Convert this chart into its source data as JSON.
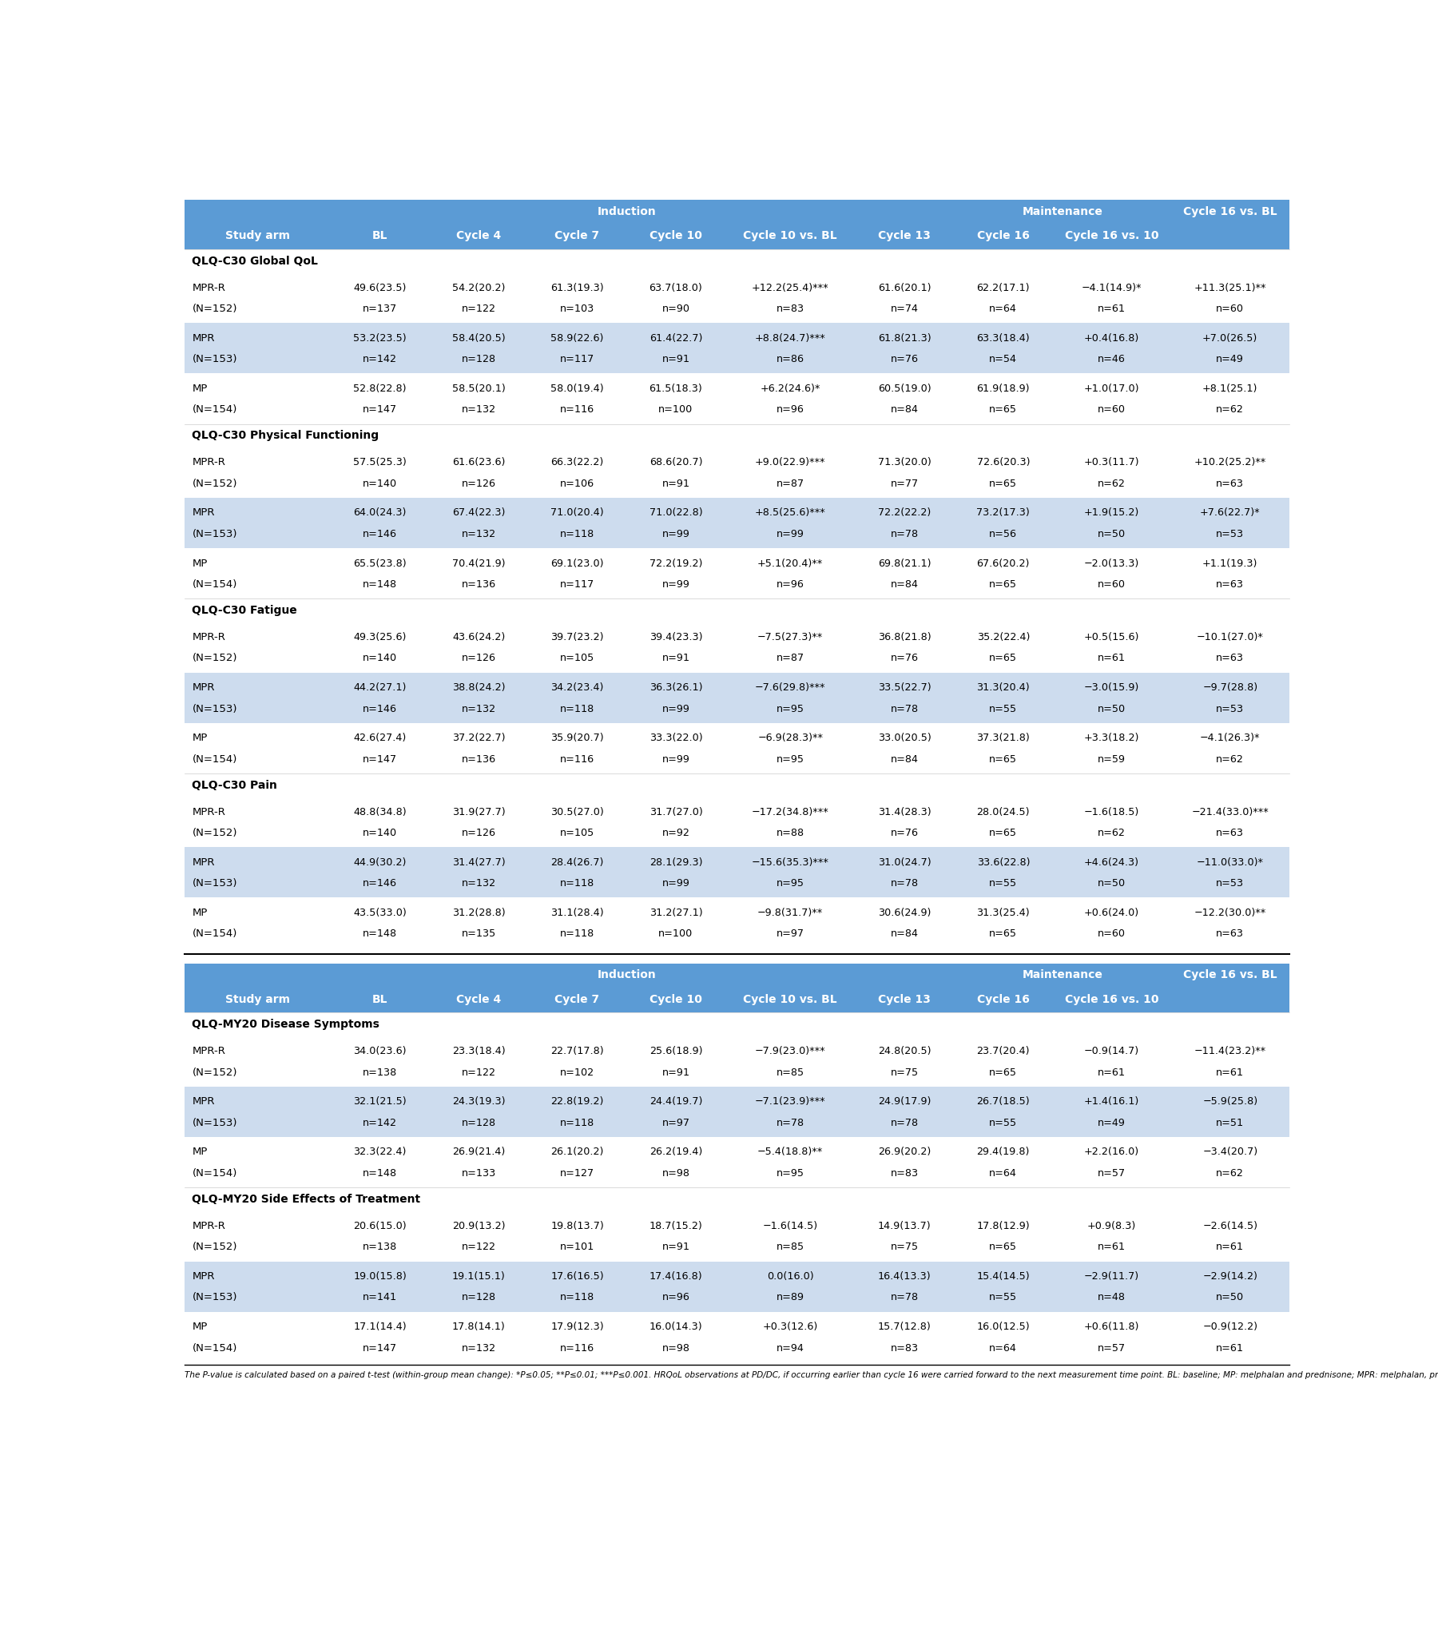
{
  "header_bg": "#5b9bd5",
  "header_text": "#ffffff",
  "row_alt_bg": "#cddcee",
  "row_white_bg": "#ffffff",
  "body_text_color": "#000000",
  "sections_top": [
    {
      "title": "QLQ-C30 Global QoL",
      "rows": [
        {
          "arm": "MPR-R\n(N=152)",
          "shaded": false,
          "BL": "49.6(23.5)\nn=137",
          "C4": "54.2(20.2)\nn=122",
          "C7": "61.3(19.3)\nn=103",
          "C10": "63.7(18.0)\nn=90",
          "C10vsBL": "+12.2(25.4)***\nn=83",
          "C13": "61.6(20.1)\nn=74",
          "C16": "62.2(17.1)\nn=64",
          "C16vs10": "−4.1(14.9)*\nn=61",
          "C16vsBL": "+11.3(25.1)**\nn=60"
        },
        {
          "arm": "MPR\n(N=153)",
          "shaded": true,
          "BL": "53.2(23.5)\nn=142",
          "C4": "58.4(20.5)\nn=128",
          "C7": "58.9(22.6)\nn=117",
          "C10": "61.4(22.7)\nn=91",
          "C10vsBL": "+8.8(24.7)***\nn=86",
          "C13": "61.8(21.3)\nn=76",
          "C16": "63.3(18.4)\nn=54",
          "C16vs10": "+0.4(16.8)\nn=46",
          "C16vsBL": "+7.0(26.5)\nn=49"
        },
        {
          "arm": "MP\n(N=154)",
          "shaded": false,
          "BL": "52.8(22.8)\nn=147",
          "C4": "58.5(20.1)\nn=132",
          "C7": "58.0(19.4)\nn=116",
          "C10": "61.5(18.3)\nn=100",
          "C10vsBL": "+6.2(24.6)*\nn=96",
          "C13": "60.5(19.0)\nn=84",
          "C16": "61.9(18.9)\nn=65",
          "C16vs10": "+1.0(17.0)\nn=60",
          "C16vsBL": "+8.1(25.1)\nn=62"
        }
      ]
    },
    {
      "title": "QLQ-C30 Physical Functioning",
      "rows": [
        {
          "arm": "MPR-R\n(N=152)",
          "shaded": false,
          "BL": "57.5(25.3)\nn=140",
          "C4": "61.6(23.6)\nn=126",
          "C7": "66.3(22.2)\nn=106",
          "C10": "68.6(20.7)\nn=91",
          "C10vsBL": "+9.0(22.9)***\nn=87",
          "C13": "71.3(20.0)\nn=77",
          "C16": "72.6(20.3)\nn=65",
          "C16vs10": "+0.3(11.7)\nn=62",
          "C16vsBL": "+10.2(25.2)**\nn=63"
        },
        {
          "arm": "MPR\n(N=153)",
          "shaded": true,
          "BL": "64.0(24.3)\nn=146",
          "C4": "67.4(22.3)\nn=132",
          "C7": "71.0(20.4)\nn=118",
          "C10": "71.0(22.8)\nn=99",
          "C10vsBL": "+8.5(25.6)***\nn=99",
          "C13": "72.2(22.2)\nn=78",
          "C16": "73.2(17.3)\nn=56",
          "C16vs10": "+1.9(15.2)\nn=50",
          "C16vsBL": "+7.6(22.7)*\nn=53"
        },
        {
          "arm": "MP\n(N=154)",
          "shaded": false,
          "BL": "65.5(23.8)\nn=148",
          "C4": "70.4(21.9)\nn=136",
          "C7": "69.1(23.0)\nn=117",
          "C10": "72.2(19.2)\nn=99",
          "C10vsBL": "+5.1(20.4)**\nn=96",
          "C13": "69.8(21.1)\nn=84",
          "C16": "67.6(20.2)\nn=65",
          "C16vs10": "−2.0(13.3)\nn=60",
          "C16vsBL": "+1.1(19.3)\nn=63"
        }
      ]
    },
    {
      "title": "QLQ-C30 Fatigue",
      "rows": [
        {
          "arm": "MPR-R\n(N=152)",
          "shaded": false,
          "BL": "49.3(25.6)\nn=140",
          "C4": "43.6(24.2)\nn=126",
          "C7": "39.7(23.2)\nn=105",
          "C10": "39.4(23.3)\nn=91",
          "C10vsBL": "−7.5(27.3)**\nn=87",
          "C13": "36.8(21.8)\nn=76",
          "C16": "35.2(22.4)\nn=65",
          "C16vs10": "+0.5(15.6)\nn=61",
          "C16vsBL": "−10.1(27.0)*\nn=63"
        },
        {
          "arm": "MPR\n(N=153)",
          "shaded": true,
          "BL": "44.2(27.1)\nn=146",
          "C4": "38.8(24.2)\nn=132",
          "C7": "34.2(23.4)\nn=118",
          "C10": "36.3(26.1)\nn=99",
          "C10vsBL": "−7.6(29.8)***\nn=95",
          "C13": "33.5(22.7)\nn=78",
          "C16": "31.3(20.4)\nn=55",
          "C16vs10": "−3.0(15.9)\nn=50",
          "C16vsBL": "−9.7(28.8)\nn=53"
        },
        {
          "arm": "MP\n(N=154)",
          "shaded": false,
          "BL": "42.6(27.4)\nn=147",
          "C4": "37.2(22.7)\nn=136",
          "C7": "35.9(20.7)\nn=116",
          "C10": "33.3(22.0)\nn=99",
          "C10vsBL": "−6.9(28.3)**\nn=95",
          "C13": "33.0(20.5)\nn=84",
          "C16": "37.3(21.8)\nn=65",
          "C16vs10": "+3.3(18.2)\nn=59",
          "C16vsBL": "−4.1(26.3)*\nn=62"
        }
      ]
    },
    {
      "title": "QLQ-C30 Pain",
      "rows": [
        {
          "arm": "MPR-R\n(N=152)",
          "shaded": false,
          "BL": "48.8(34.8)\nn=140",
          "C4": "31.9(27.7)\nn=126",
          "C7": "30.5(27.0)\nn=105",
          "C10": "31.7(27.0)\nn=92",
          "C10vsBL": "−17.2(34.8)***\nn=88",
          "C13": "31.4(28.3)\nn=76",
          "C16": "28.0(24.5)\nn=65",
          "C16vs10": "−1.6(18.5)\nn=62",
          "C16vsBL": "−21.4(33.0)***\nn=63"
        },
        {
          "arm": "MPR\n(N=153)",
          "shaded": true,
          "BL": "44.9(30.2)\nn=146",
          "C4": "31.4(27.7)\nn=132",
          "C7": "28.4(26.7)\nn=118",
          "C10": "28.1(29.3)\nn=99",
          "C10vsBL": "−15.6(35.3)***\nn=95",
          "C13": "31.0(24.7)\nn=78",
          "C16": "33.6(22.8)\nn=55",
          "C16vs10": "+4.6(24.3)\nn=50",
          "C16vsBL": "−11.0(33.0)*\nn=53"
        },
        {
          "arm": "MP\n(N=154)",
          "shaded": false,
          "BL": "43.5(33.0)\nn=148",
          "C4": "31.2(28.8)\nn=135",
          "C7": "31.1(28.4)\nn=118",
          "C10": "31.2(27.1)\nn=100",
          "C10vsBL": "−9.8(31.7)**\nn=97",
          "C13": "30.6(24.9)\nn=84",
          "C16": "31.3(25.4)\nn=65",
          "C16vs10": "+0.6(24.0)\nn=60",
          "C16vsBL": "−12.2(30.0)**\nn=63"
        }
      ]
    }
  ],
  "sections_bottom": [
    {
      "title": "QLQ-MY20 Disease Symptoms",
      "rows": [
        {
          "arm": "MPR-R\n(N=152)",
          "shaded": false,
          "BL": "34.0(23.6)\nn=138",
          "C4": "23.3(18.4)\nn=122",
          "C7": "22.7(17.8)\nn=102",
          "C10": "25.6(18.9)\nn=91",
          "C10vsBL": "−7.9(23.0)***\nn=85",
          "C13": "24.8(20.5)\nn=75",
          "C16": "23.7(20.4)\nn=65",
          "C16vs10": "−0.9(14.7)\nn=61",
          "C16vsBL": "−11.4(23.2)**\nn=61"
        },
        {
          "arm": "MPR\n(N=153)",
          "shaded": true,
          "BL": "32.1(21.5)\nn=142",
          "C4": "24.3(19.3)\nn=128",
          "C7": "22.8(19.2)\nn=118",
          "C10": "24.4(19.7)\nn=97",
          "C10vsBL": "−7.1(23.9)***\nn=78",
          "C13": "24.9(17.9)\nn=78",
          "C16": "26.7(18.5)\nn=55",
          "C16vs10": "+1.4(16.1)\nn=49",
          "C16vsBL": "−5.9(25.8)\nn=51"
        },
        {
          "arm": "MP\n(N=154)",
          "shaded": false,
          "BL": "32.3(22.4)\nn=148",
          "C4": "26.9(21.4)\nn=133",
          "C7": "26.1(20.2)\nn=127",
          "C10": "26.2(19.4)\nn=98",
          "C10vsBL": "−5.4(18.8)**\nn=95",
          "C13": "26.9(20.2)\nn=83",
          "C16": "29.4(19.8)\nn=64",
          "C16vs10": "+2.2(16.0)\nn=57",
          "C16vsBL": "−3.4(20.7)\nn=62"
        }
      ]
    },
    {
      "title": "QLQ-MY20 Side Effects of Treatment",
      "rows": [
        {
          "arm": "MPR-R\n(N=152)",
          "shaded": false,
          "BL": "20.6(15.0)\nn=138",
          "C4": "20.9(13.2)\nn=122",
          "C7": "19.8(13.7)\nn=101",
          "C10": "18.7(15.2)\nn=91",
          "C10vsBL": "−1.6(14.5)\nn=85",
          "C13": "14.9(13.7)\nn=75",
          "C16": "17.8(12.9)\nn=65",
          "C16vs10": "+0.9(8.3)\nn=61",
          "C16vsBL": "−2.6(14.5)\nn=61"
        },
        {
          "arm": "MPR\n(N=153)",
          "shaded": true,
          "BL": "19.0(15.8)\nn=141",
          "C4": "19.1(15.1)\nn=128",
          "C7": "17.6(16.5)\nn=118",
          "C10": "17.4(16.8)\nn=96",
          "C10vsBL": "0.0(16.0)\nn=89",
          "C13": "16.4(13.3)\nn=78",
          "C16": "15.4(14.5)\nn=55",
          "C16vs10": "−2.9(11.7)\nn=48",
          "C16vsBL": "−2.9(14.2)\nn=50"
        },
        {
          "arm": "MP\n(N=154)",
          "shaded": false,
          "BL": "17.1(14.4)\nn=147",
          "C4": "17.8(14.1)\nn=132",
          "C7": "17.9(12.3)\nn=116",
          "C10": "16.0(14.3)\nn=98",
          "C10vsBL": "+0.3(12.6)\nn=94",
          "C13": "15.7(12.8)\nn=83",
          "C16": "16.0(12.5)\nn=64",
          "C16vs10": "+0.6(11.8)\nn=57",
          "C16vsBL": "−0.9(12.2)\nn=61"
        }
      ]
    }
  ],
  "footnote": "The P-value is calculated based on a paired t-test (within-group mean change): *P≤0.05; **P≤0.01; ***P≤0.001. HRQoL observations at PD/DC, if occurring earlier than cycle 16 were carried forward to the next measurement time point. BL: baseline; MP: melphalan and prednisone; MPR: melphalan, prednisone, and lenalidomide; MPR-R: melphalan, prednisone, and lenalidomide followed by lenalidomide maintenance therapy."
}
